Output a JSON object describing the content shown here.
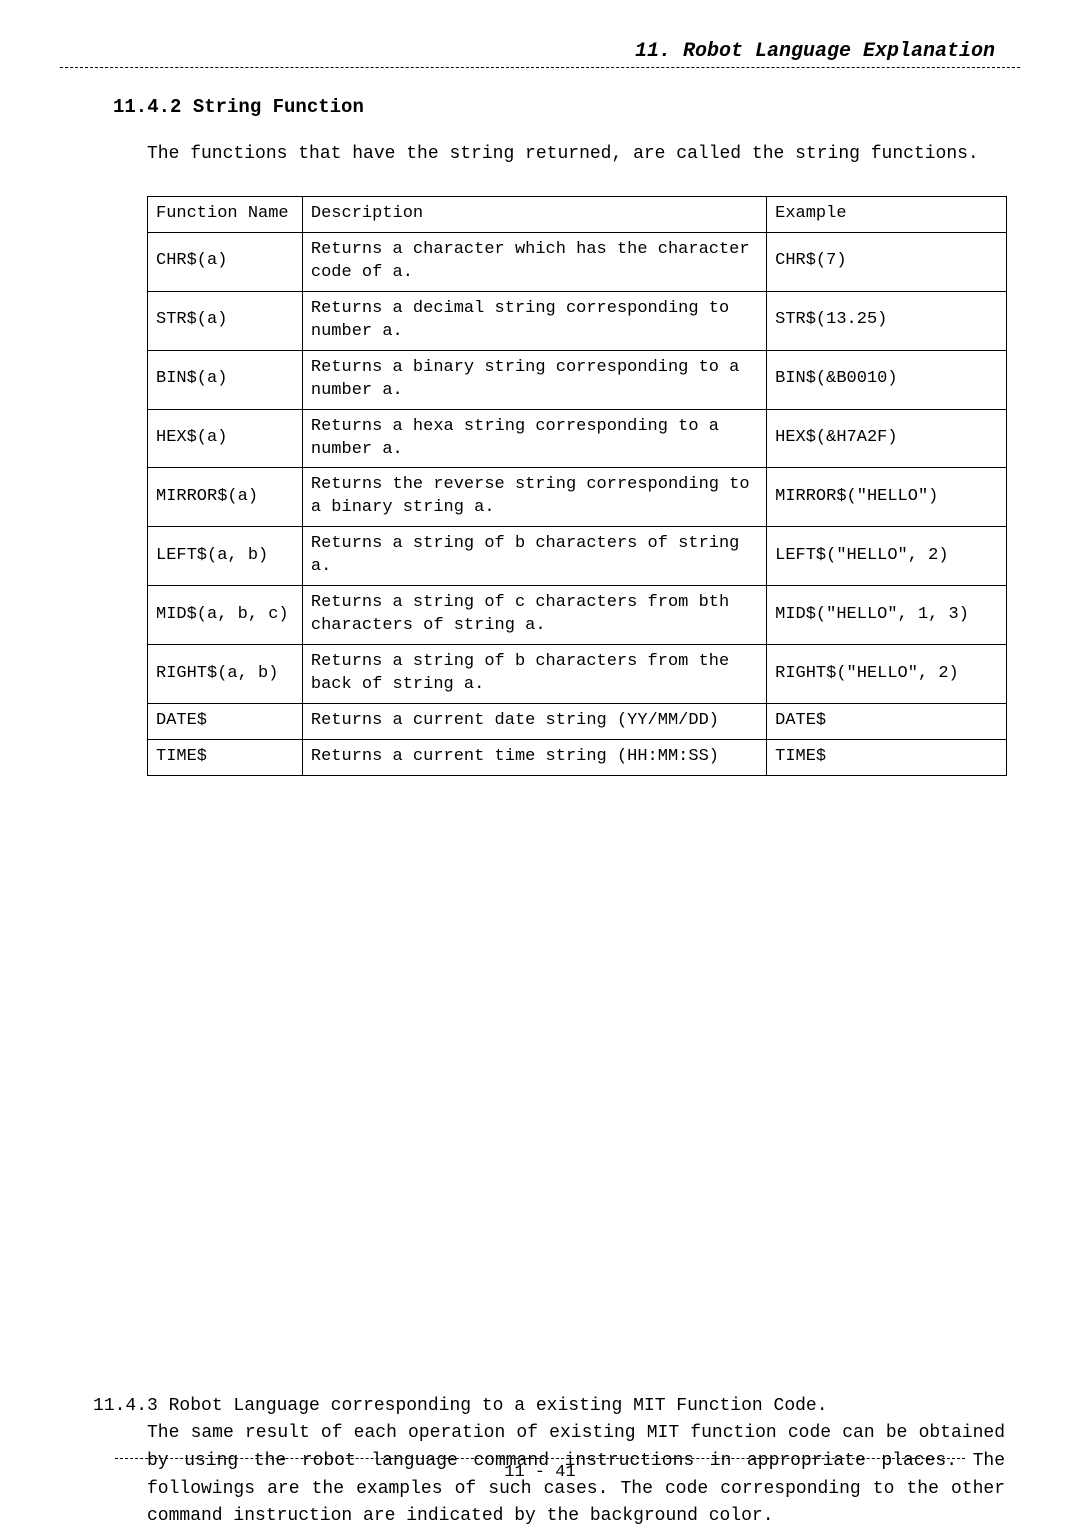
{
  "header": {
    "title": "11. Robot Language Explanation"
  },
  "section": {
    "number_title": "11.4.2 String Function",
    "intro": "The functions that have the string returned, are called the string functions."
  },
  "table": {
    "columns": [
      "Function Name",
      "Description",
      "Example"
    ],
    "rows": [
      {
        "fn": "CHR$(a)",
        "desc": "Returns a character which has the character code of a.",
        "ex": "CHR$(7)"
      },
      {
        "fn": "STR$(a)",
        "desc": "Returns a decimal string corresponding to number a.",
        "ex": "STR$(13.25)"
      },
      {
        "fn": "BIN$(a)",
        "desc": "Returns a binary string corresponding to a number a.",
        "ex": "BIN$(&B0010)"
      },
      {
        "fn": "HEX$(a)",
        "desc": "Returns a hexa string corresponding to a number a.",
        "ex": "HEX$(&H7A2F)"
      },
      {
        "fn": "MIRROR$(a)",
        "desc": "Returns the reverse string corresponding to a binary string a.",
        "ex": "MIRROR$(\"HELLO\")"
      },
      {
        "fn": "LEFT$(a, b)",
        "desc": "Returns a string of b characters of string a.",
        "ex": "LEFT$(\"HELLO\", 2)"
      },
      {
        "fn": "MID$(a, b, c)",
        "desc": "Returns a string of c characters from bth characters of string a.",
        "ex": "MID$(\"HELLO\", 1, 3)"
      },
      {
        "fn": "RIGHT$(a, b)",
        "desc": "Returns a string of b characters from the back of string a.",
        "ex": "RIGHT$(\"HELLO\", 2)"
      },
      {
        "fn": "DATE$",
        "desc": "Returns a current date string (YY/MM/DD)",
        "ex": "DATE$"
      },
      {
        "fn": "TIME$",
        "desc": "Returns a current time string (HH:MM:SS)",
        "ex": "TIME$"
      }
    ]
  },
  "subsection": {
    "title": "11.4.3 Robot Language corresponding to a existing MIT Function Code.",
    "body": "The same result of each operation of existing MIT function code can be obtained by using the robot language command instructions in appropriate places. The followings are the examples of such cases. The code corresponding to the other command instruction are indicated by the background color."
  },
  "footer": {
    "page_number": "11 - 41"
  },
  "style": {
    "page_bg": "#ffffff",
    "text_color": "#000000",
    "border_color": "#000000",
    "font_family": "Courier New, monospace",
    "title_fontsize_pt": 20,
    "section_fontsize_pt": 19,
    "body_fontsize_pt": 18,
    "table_fontsize_pt": 17
  }
}
